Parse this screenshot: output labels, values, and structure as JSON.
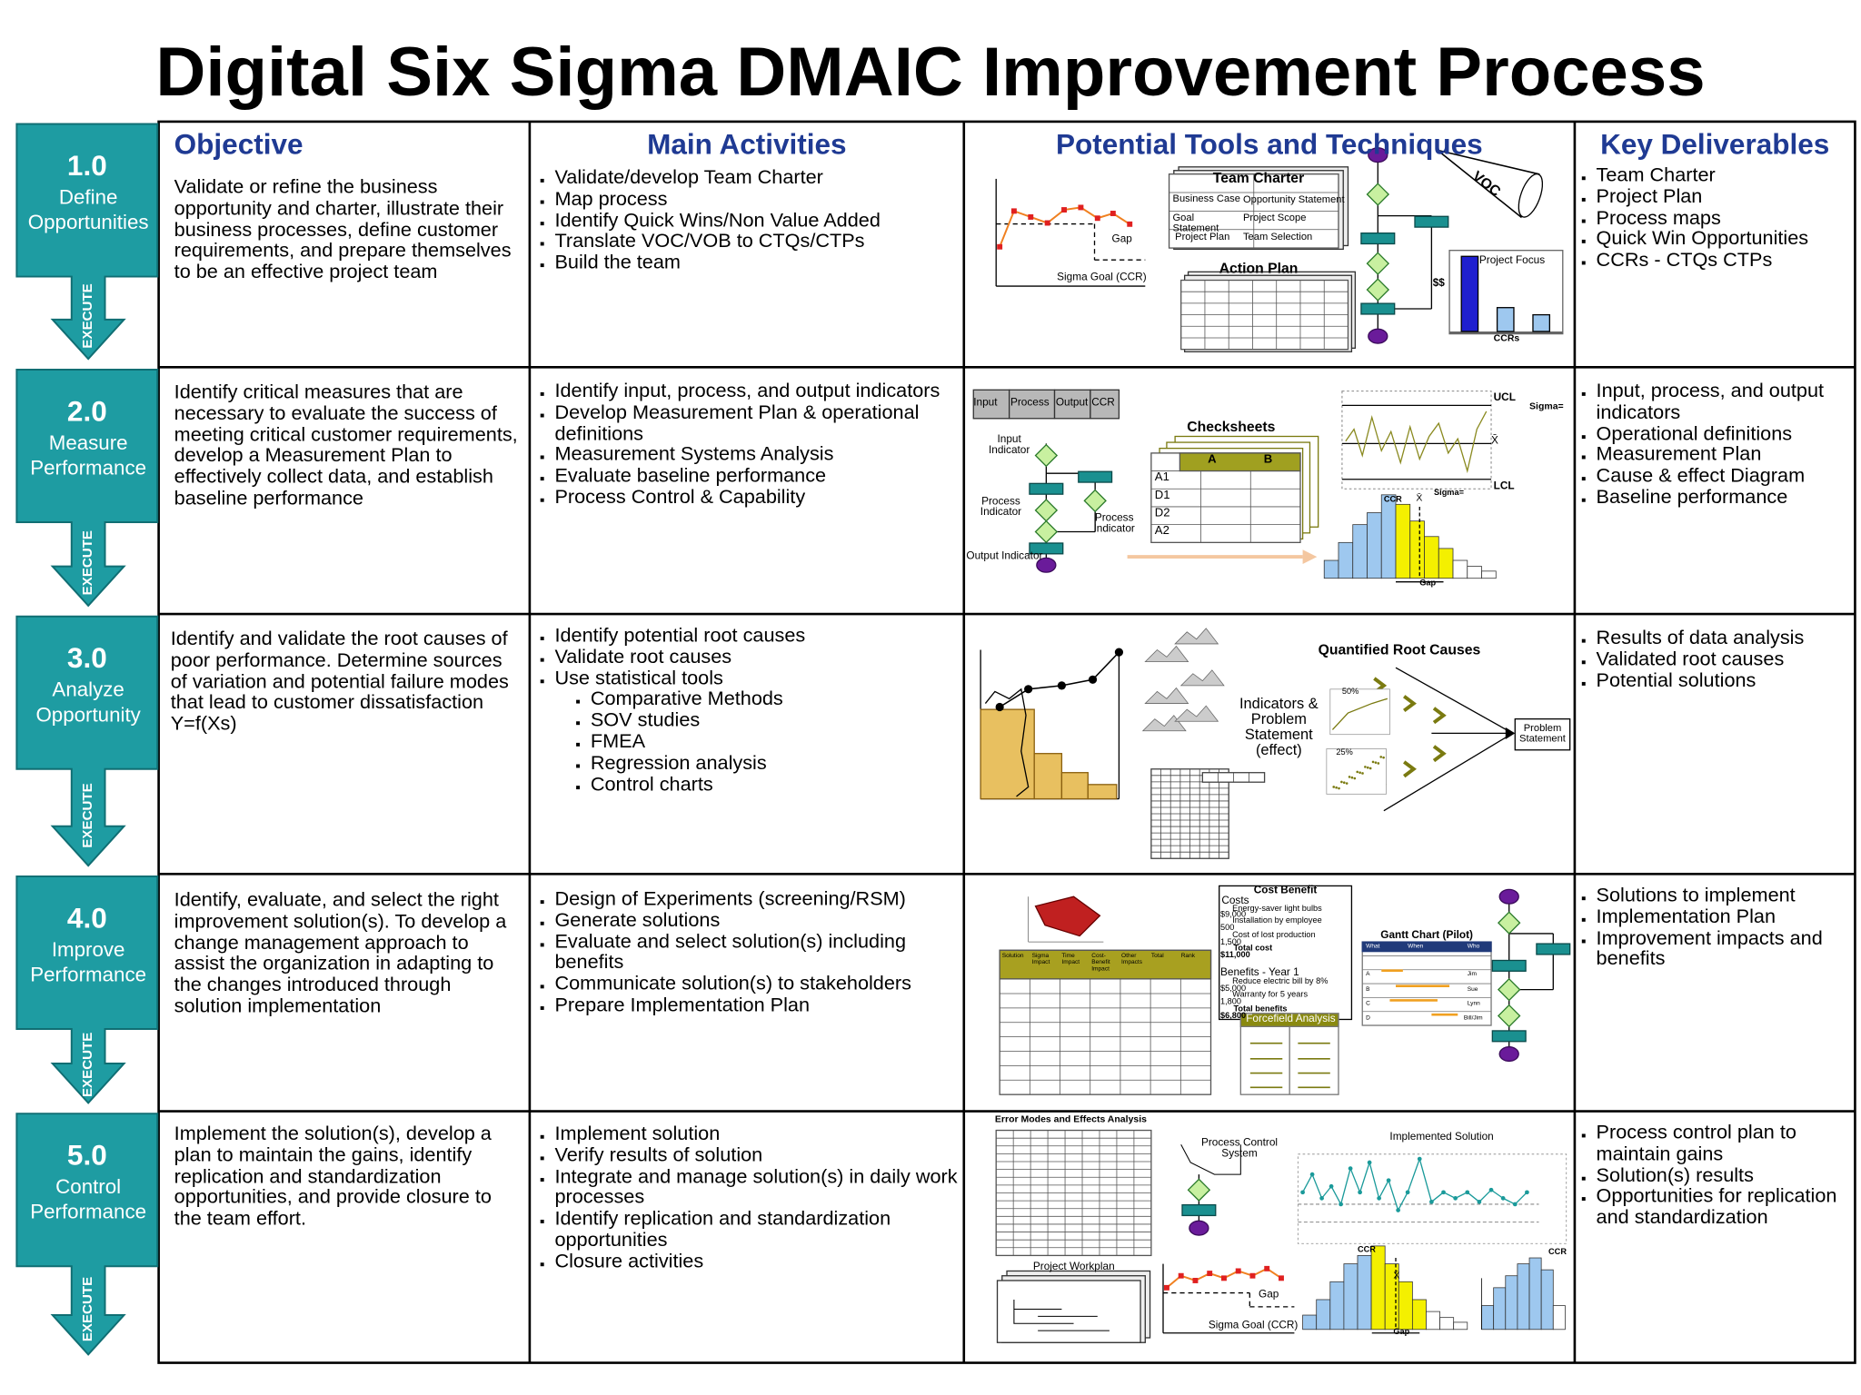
{
  "title": "Digital Six Sigma DMAIC Improvement Process",
  "headings": {
    "objective": "Objective",
    "activities": "Main Activities",
    "tools": "Potential Tools and Techniques",
    "deliverables": "Key Deliverables"
  },
  "phases": [
    {
      "number": "1.0",
      "name": [
        "Define",
        "Opportunities"
      ],
      "execute": "EXECUTE",
      "objective": "Validate or refine the business opportunity and charter, illustrate their business processes, define customer requirements, and prepare themselves to be an effective project team",
      "activities": [
        "Validate/develop Team Charter",
        "Map process",
        "Identify Quick Wins/Non Value Added",
        "Translate VOC/VOB to CTQs/CTPs",
        "Build the team"
      ],
      "tools": [
        "Gap",
        "Sigma Goal (CCR)",
        "Team Charter",
        "Business Case",
        "Opportunity Statement",
        "Goal Statement",
        "Project Scope",
        "Project Plan",
        "Team Selection",
        "Action Plan",
        "Project Focus",
        "$$",
        "CCRs",
        "VOC"
      ],
      "deliverables": [
        "Team Charter",
        "Project Plan",
        "Process maps",
        "Quick Win Opportunities",
        "CCRs  - CTQs CTPs"
      ]
    },
    {
      "number": "2.0",
      "name": [
        "Measure",
        "Performance"
      ],
      "execute": "EXECUTE",
      "objective": "Identify critical measures that are necessary to evaluate the success of meeting critical customer requirements, develop a Measurement Plan to effectively collect data, and establish baseline performance",
      "activities": [
        "Identify input, process, and output indicators",
        "Develop Measurement Plan & operational definitions",
        "Measurement Systems Analysis",
        "Evaluate baseline performance",
        "Process Control & Capability"
      ],
      "tools": [
        "Input",
        "Process",
        "Output",
        "CCR",
        "Input Indicator",
        "Process Indicator",
        "Process Indicator",
        "Output Indicator",
        "Checksheets",
        "A",
        "B",
        "A1",
        "D1",
        "D2",
        "A2",
        "UCL",
        "Sigma=",
        "X̄",
        "LCL",
        "Sigma=",
        "CCR",
        "X̄",
        "Gap"
      ],
      "deliverables": [
        "Input, process, and output indicators",
        "Operational definitions",
        "Measurement Plan",
        "Cause & effect Diagram",
        "Baseline performance"
      ]
    },
    {
      "number": "3.0",
      "name": [
        "Analyze",
        "Opportunity"
      ],
      "execute": "EXECUTE",
      "objective": "Identify and validate the root causes of poor performance. Determine sources of variation and potential failure modes that lead to customer dissatisfaction    Y=f(Xs)",
      "activities": [
        "Identify potential root causes",
        "Validate root causes",
        {
          "text": "Use statistical tools",
          "items": [
            "Comparative Methods",
            "SOV studies",
            "FMEA",
            "Regression analysis",
            "Control charts"
          ]
        }
      ],
      "tools": [
        "Quantified Root Causes",
        "Indicators & Problem Statement (effect)",
        "50%",
        "25%",
        "Problem Statement"
      ],
      "deliverables": [
        "Results of data analysis",
        "Validated root causes",
        "Potential solutions"
      ]
    },
    {
      "number": "4.0",
      "name": [
        "Improve",
        "Performance"
      ],
      "execute": "EXECUTE",
      "objective": "Identify, evaluate, and select the right improvement solution(s). To develop a change management approach to assist the organization in adapting to the changes introduced through solution implementation",
      "activities": [
        "Design of Experiments (screening/RSM)",
        "Generate solutions",
        "Evaluate and select solution(s) including benefits",
        "Communicate solution(s) to stakeholders",
        "Prepare Implementation Plan"
      ],
      "tools": [
        "Cost Benefit",
        "Costs",
        "Energy-saver light bulbs",
        "$9,000",
        "Installation by employee",
        "500",
        "Cost of lost production",
        "1,500",
        "Total cost",
        "$11,000",
        "Benefits - Year 1",
        "Reduce electric bill by 8%",
        "$5,000",
        "Warranty for 5 years",
        "1,800",
        "Total benefits",
        "$6,800",
        "Forcefield Analysis",
        "Gantt Chart (Pilot)",
        "Solution",
        "Sigma Impact",
        "Time Impact",
        "Cost-Benefit Impact",
        "Other Impacts",
        "Total",
        "Rank",
        "What",
        "When",
        "Who",
        "A",
        "B",
        "C",
        "D",
        "Jim",
        "Sue",
        "Lynn",
        "Bill/Jim"
      ],
      "deliverables": [
        "Solutions to implement",
        "Implementation Plan",
        "Improvement impacts and benefits"
      ]
    },
    {
      "number": "5.0",
      "name": [
        "Control",
        "Performance"
      ],
      "execute": "EXECUTE",
      "objective": "Implement the solution(s), develop a plan to maintain the gains, identify replication and standardization opportunities, and provide closure to the team effort.",
      "activities": [
        "Implement solution",
        "Verify results of solution",
        "Integrate and manage solution(s) in daily work processes",
        "Identify replication and standardization opportunities",
        "Closure activities"
      ],
      "tools": [
        "Error Modes and Effects Analysis",
        "Process Control System",
        "Implemented  Solution",
        "Project Workplan",
        "Gap",
        "Sigma Goal (CCR)",
        "CCR",
        "X̄",
        "Gap",
        "CCR"
      ],
      "deliverables": [
        "Process control plan to maintain gains",
        "Solution(s) results",
        "Opportunities for replication and standardization"
      ]
    }
  ]
}
